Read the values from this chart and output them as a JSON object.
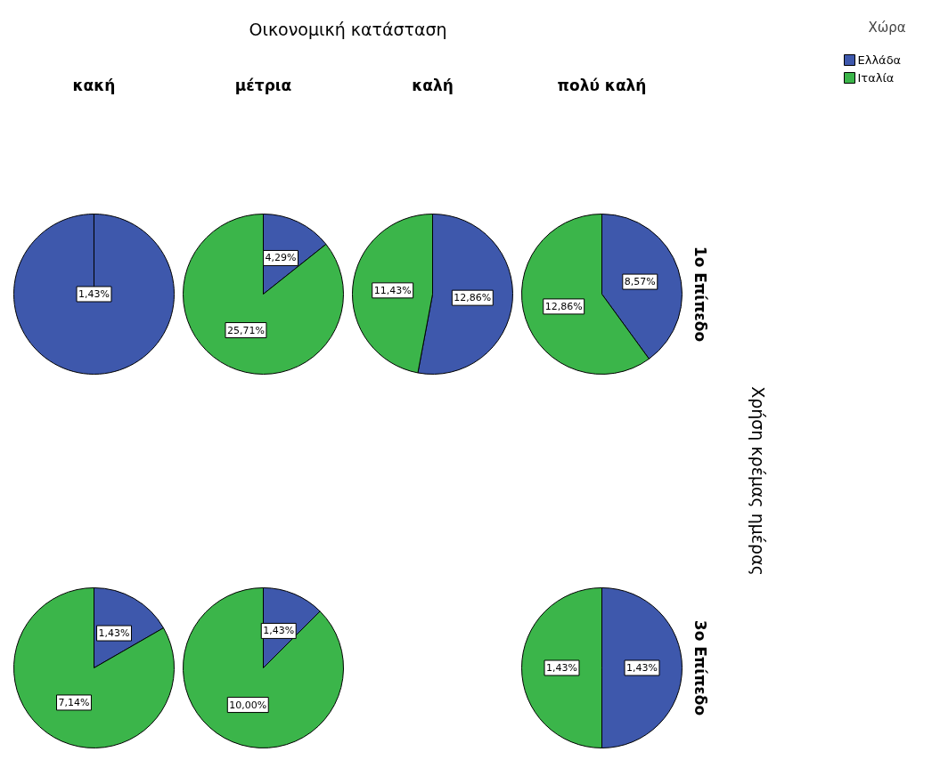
{
  "chart_data": [
    {
      "type": "pie",
      "title": "Οικονομική κατάσταση",
      "subtitle": "κακή",
      "legend_title": "Χώρα",
      "legend": "top right",
      "categories": [
        "Ελλάδα",
        "Ιταλία"
      ],
      "colors": [
        "#3e58ac",
        "#3bb54a"
      ],
      "values": [
        1.43,
        null
      ],
      "value_labels": [
        "1,43%",
        null
      ]
    },
    {
      "type": "pie",
      "subtitle": "μέτρια",
      "categories": [
        null,
        null
      ],
      "colors": [
        "#3e58ac",
        "#3bb54a"
      ],
      "values": [
        4.29,
        25.71
      ],
      "value_labels": [
        "4,29%",
        "25,71%"
      ]
    },
    {
      "type": "pie",
      "subtitle": "καλή",
      "categories": [
        null,
        null
      ],
      "colors": [
        "#3e58ac",
        "#3bb54a"
      ],
      "values": [
        12.86,
        11.43
      ],
      "value_labels": [
        "12,86%",
        "11,43%"
      ]
    },
    {
      "type": "pie",
      "subtitle": "πολύ καλή",
      "ylabel": "1ο Επίπεδο",
      "y2label": "Χρήση κρέμας ημέρας",
      "categories": [
        null,
        null
      ],
      "colors": [
        "#3e58ac",
        "#3bb54a"
      ],
      "values": [
        8.57,
        12.86
      ],
      "value_labels": [
        "8,57%",
        "12,86%"
      ]
    },
    {
      "type": "pie",
      "categories": [
        null,
        null
      ],
      "colors": [
        "#3e58ac",
        "#3bb54a"
      ],
      "values": [
        1.43,
        7.14
      ],
      "value_labels": [
        "1,43%",
        "7,14%"
      ]
    },
    {
      "type": "pie",
      "categories": [
        null,
        null
      ],
      "colors": [
        "#3e58ac",
        "#3bb54a"
      ],
      "values": [
        1.43,
        10.0
      ],
      "value_labels": [
        "1,43%",
        "10,00%"
      ]
    },
    {
      "type": "pie",
      "ylabel": "3ο Επίπεδο",
      "categories": [
        null,
        null
      ],
      "colors": [
        "#3e58ac",
        "#3bb54a"
      ],
      "values": [
        1.43,
        1.43
      ],
      "value_labels": [
        "1,43%",
        "1,43%"
      ]
    }
  ]
}
